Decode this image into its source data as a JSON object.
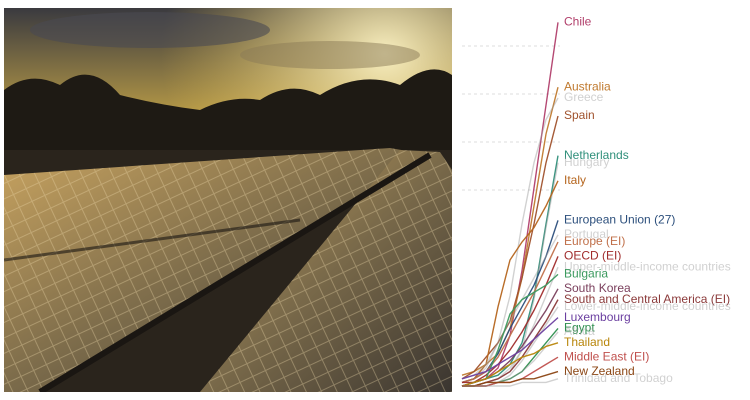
{
  "chart_data": {
    "type": "line",
    "series": [
      {
        "name": "Chile",
        "color": "#b13f6b",
        "faded": false,
        "values": [
          0,
          1,
          2,
          5,
          14,
          32,
          55,
          78,
          101
        ]
      },
      {
        "name": "Australia",
        "color": "#c07a2f",
        "faded": false,
        "values": [
          3,
          4,
          6,
          9,
          16,
          30,
          50,
          70,
          83
        ]
      },
      {
        "name": "Greece",
        "color": "#999999",
        "faded": true,
        "values": [
          1,
          2,
          5,
          12,
          25,
          45,
          62,
          74,
          80
        ]
      },
      {
        "name": "Spain",
        "color": "#a0522d",
        "faded": false,
        "values": [
          2,
          4,
          8,
          12,
          18,
          30,
          45,
          62,
          75
        ]
      },
      {
        "name": "Netherlands",
        "color": "#2f8f7a",
        "faded": false,
        "values": [
          0,
          1,
          2,
          3,
          6,
          12,
          25,
          45,
          64
        ]
      },
      {
        "name": "Hungary",
        "color": "#999999",
        "faded": true,
        "values": [
          0,
          0,
          1,
          2,
          4,
          10,
          24,
          44,
          62
        ]
      },
      {
        "name": "Italy",
        "color": "#b5651d",
        "faded": false,
        "values": [
          1,
          2,
          6,
          22,
          35,
          40,
          44,
          50,
          57
        ]
      },
      {
        "name": "European Union (27)",
        "color": "#2c4f7c",
        "faded": false,
        "values": [
          1,
          2,
          4,
          9,
          16,
          22,
          28,
          36,
          46
        ]
      },
      {
        "name": "Portugal",
        "color": "#999999",
        "faded": true,
        "values": [
          2,
          3,
          6,
          12,
          18,
          24,
          30,
          36,
          42
        ]
      },
      {
        "name": "Europe (EI)",
        "color": "#c0704a",
        "faded": false,
        "values": [
          1,
          2,
          4,
          8,
          14,
          20,
          26,
          33,
          40
        ]
      },
      {
        "name": "OECD (EI)",
        "color": "#a02c2c",
        "faded": false,
        "values": [
          1,
          1,
          3,
          6,
          10,
          15,
          21,
          28,
          36
        ]
      },
      {
        "name": "Upper-middle-income countries",
        "color": "#999999",
        "faded": true,
        "values": [
          0,
          0,
          1,
          2,
          5,
          10,
          17,
          25,
          33
        ]
      },
      {
        "name": "Bulgaria",
        "color": "#3c9a5f",
        "faded": false,
        "values": [
          0,
          1,
          2,
          10,
          20,
          24,
          26,
          28,
          31
        ]
      },
      {
        "name": "South Korea",
        "color": "#7a3f5c",
        "faded": false,
        "values": [
          0,
          1,
          2,
          4,
          7,
          11,
          16,
          21,
          27
        ]
      },
      {
        "name": "South and Central America (EI)",
        "color": "#8b3a3a",
        "faded": false,
        "values": [
          0,
          0,
          1,
          2,
          4,
          8,
          13,
          18,
          24
        ]
      },
      {
        "name": "Lower-middle-income countries",
        "color": "#999999",
        "faded": true,
        "values": [
          0,
          0,
          0,
          1,
          3,
          7,
          12,
          17,
          22
        ]
      },
      {
        "name": "Luxembourg",
        "color": "#6b3fa0",
        "faded": false,
        "values": [
          2,
          3,
          4,
          6,
          8,
          10,
          13,
          16,
          19
        ]
      },
      {
        "name": "Egypt",
        "color": "#2f8f4f",
        "faded": false,
        "values": [
          0,
          0,
          0,
          1,
          2,
          4,
          8,
          12,
          16
        ]
      },
      {
        "name": "Africa",
        "color": "#999999",
        "faded": true,
        "values": [
          0,
          0,
          0,
          1,
          2,
          4,
          7,
          11,
          15
        ]
      },
      {
        "name": "Thailand",
        "color": "#b8860b",
        "faded": false,
        "values": [
          0,
          1,
          2,
          4,
          6,
          8,
          9,
          11,
          12
        ]
      },
      {
        "name": "Middle East (EI)",
        "color": "#c0504d",
        "faded": false,
        "values": [
          0,
          0,
          0,
          1,
          1,
          2,
          4,
          6,
          8
        ]
      },
      {
        "name": "New Zealand",
        "color": "#8b4513",
        "faded": false,
        "values": [
          0,
          0,
          1,
          1,
          1,
          2,
          2,
          3,
          4
        ]
      },
      {
        "name": "Trinidad and Tobago",
        "color": "#999999",
        "faded": true,
        "values": [
          0,
          0,
          0,
          0,
          0,
          1,
          1,
          1,
          2
        ]
      }
    ]
  }
}
